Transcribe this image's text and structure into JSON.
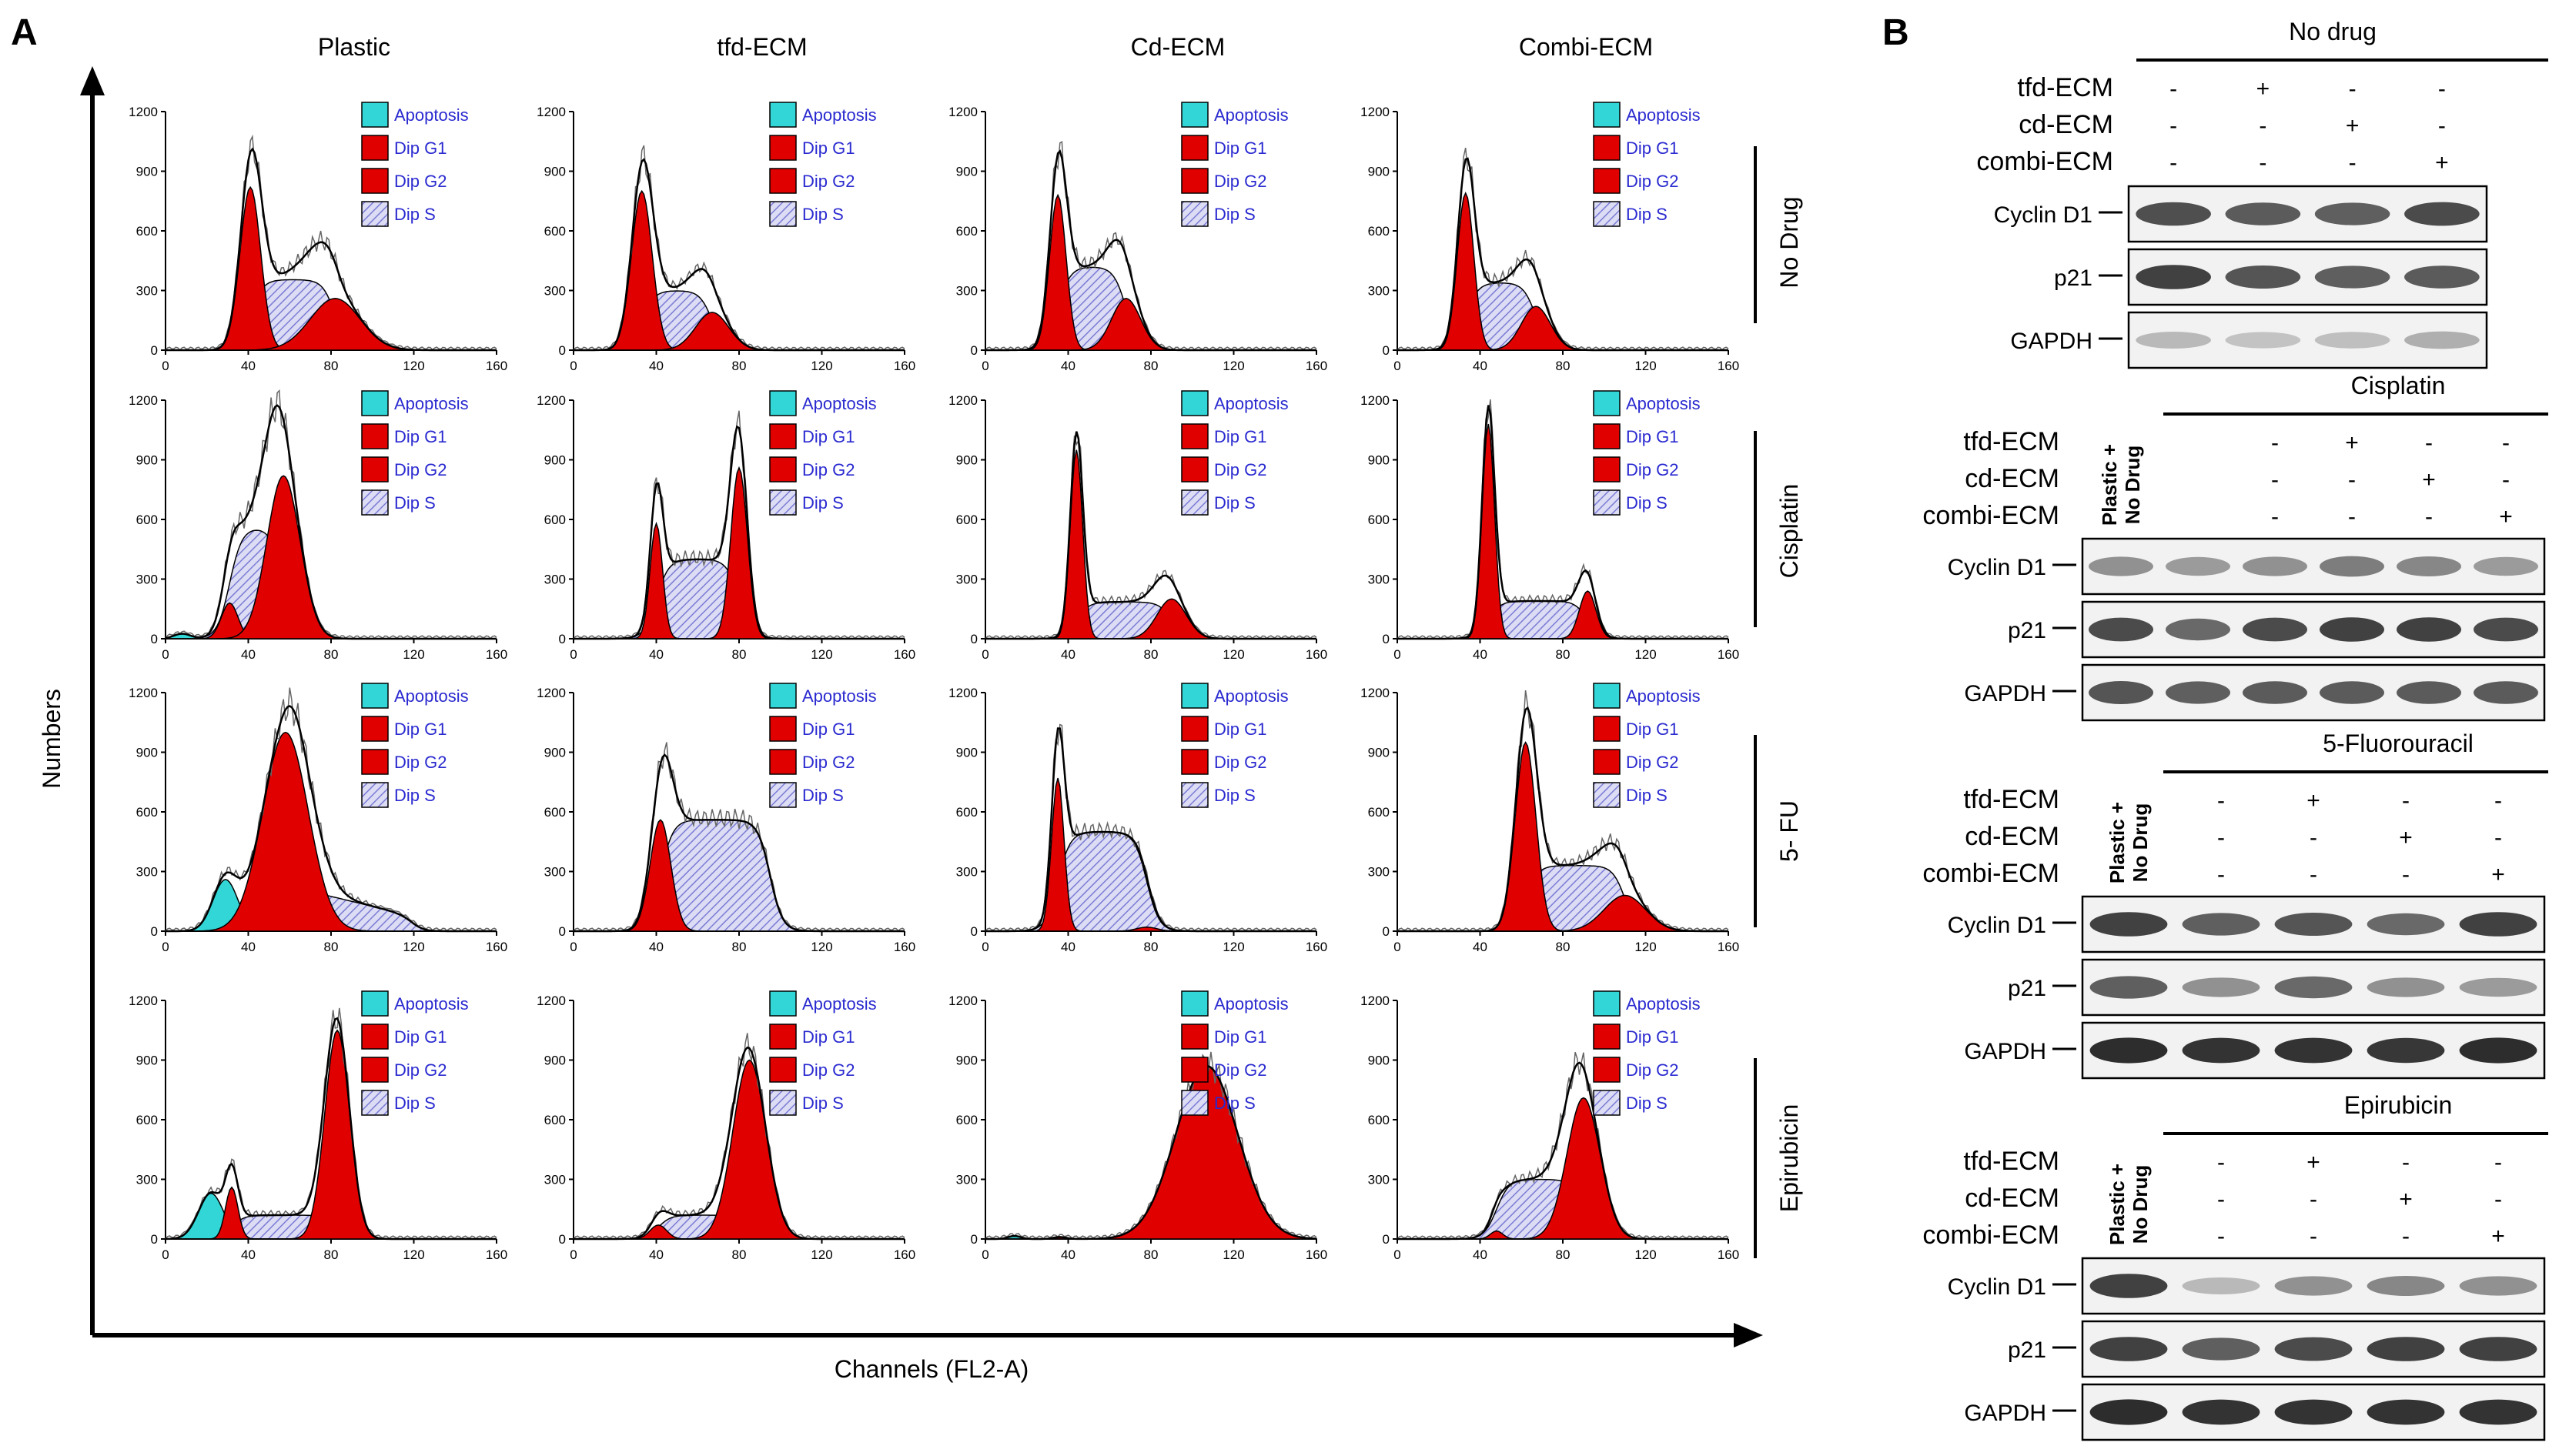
{
  "panel_a": {
    "letter": "A",
    "y_axis_label": "Numbers",
    "x_axis_label": "Channels (FL2-A)",
    "columns": [
      "Plastic",
      "tfd-ECM",
      "Cd-ECM",
      "Combi-ECM"
    ],
    "rows": [
      "No Drug",
      "Cisplatin",
      "5- FU",
      "Epirubicin"
    ],
    "legend": [
      "Apoptosis",
      "Dip G1",
      "Dip G2",
      "Dip S"
    ],
    "y_ticks": [
      "0",
      "300",
      "600",
      "900",
      "1200"
    ],
    "x_ticks": [
      "0",
      "40",
      "80",
      "120",
      "160"
    ],
    "colors": {
      "apoptosis": "#33d6d6",
      "g1": "#e00000",
      "g2": "#e00000",
      "s": "#c9c9ee"
    }
  },
  "panel_b": {
    "letter": "B",
    "conditions": [
      "tfd-ECM",
      "cd-ECM",
      "combi-ECM"
    ],
    "plastic_label_1": "Plastic +",
    "plastic_label_2": "No Drug",
    "proteins": [
      "Cyclin D1",
      "p21",
      "GAPDH"
    ],
    "sections": [
      {
        "title": "No drug",
        "signs": [
          [
            "-",
            "+",
            "-",
            "-"
          ],
          [
            "-",
            "-",
            "+",
            "-"
          ],
          [
            "-",
            "-",
            "-",
            "+"
          ]
        ],
        "intensity": [
          [
            0.78,
            0.72,
            0.7,
            0.8
          ],
          [
            0.85,
            0.75,
            0.7,
            0.72
          ],
          [
            0.25,
            0.2,
            0.22,
            0.3
          ]
        ]
      },
      {
        "title": "Cisplatin",
        "signs": [
          [
            "-",
            "+",
            "-",
            "-"
          ],
          [
            "-",
            "-",
            "+",
            "-"
          ],
          [
            "-",
            "-",
            "-",
            "+"
          ]
        ],
        "intensity": [
          [
            0.45,
            0.4,
            0.45,
            0.55,
            0.5,
            0.4
          ],
          [
            0.8,
            0.65,
            0.8,
            0.85,
            0.85,
            0.8
          ],
          [
            0.75,
            0.7,
            0.72,
            0.72,
            0.72,
            0.72
          ]
        ]
      },
      {
        "title": "5-Fluorouracil",
        "signs": [
          [
            "-",
            "+",
            "-",
            "-"
          ],
          [
            "-",
            "-",
            "+",
            "-"
          ],
          [
            "-",
            "-",
            "-",
            "+"
          ]
        ],
        "intensity": [
          [
            0.85,
            0.7,
            0.75,
            0.65,
            0.85
          ],
          [
            0.7,
            0.45,
            0.65,
            0.45,
            0.4
          ],
          [
            0.95,
            0.92,
            0.92,
            0.9,
            0.95
          ]
        ]
      },
      {
        "title": "Epirubicin",
        "signs": [
          [
            "-",
            "+",
            "-",
            "-"
          ],
          [
            "-",
            "-",
            "+",
            "-"
          ],
          [
            "-",
            "-",
            "-",
            "+"
          ]
        ],
        "intensity": [
          [
            0.85,
            0.25,
            0.45,
            0.5,
            0.45
          ],
          [
            0.85,
            0.7,
            0.8,
            0.85,
            0.85
          ],
          [
            0.95,
            0.92,
            0.92,
            0.92,
            0.92
          ]
        ]
      }
    ]
  },
  "histograms": [
    [
      {
        "pk": [
          [
            41,
            820,
            5
          ],
          [
            82,
            260,
            12
          ]
        ],
        "s": [
          [
            41,
            82,
            355,
            "even"
          ]
        ],
        "a": []
      },
      {
        "pk": [
          [
            33,
            800,
            5
          ],
          [
            67,
            190,
            8
          ]
        ],
        "s": [
          [
            33,
            67,
            300,
            "even"
          ]
        ],
        "a": []
      },
      {
        "pk": [
          [
            35,
            780,
            4
          ],
          [
            68,
            260,
            7
          ]
        ],
        "s": [
          [
            35,
            68,
            420,
            "even"
          ]
        ],
        "a": []
      },
      {
        "pk": [
          [
            33,
            790,
            4
          ],
          [
            67,
            220,
            7
          ]
        ],
        "s": [
          [
            33,
            67,
            340,
            "even"
          ]
        ],
        "a": []
      }
    ],
    [
      {
        "pk": [
          [
            31,
            180,
            4
          ],
          [
            57,
            820,
            8
          ]
        ],
        "s": [
          [
            31,
            57,
            560,
            "even"
          ]
        ],
        "a": [
          [
            8,
            25,
            4
          ]
        ]
      },
      {
        "pk": [
          [
            40,
            580,
            3
          ],
          [
            80,
            860,
            4
          ]
        ],
        "s": [
          [
            40,
            80,
            400,
            "even"
          ]
        ],
        "a": []
      },
      {
        "pk": [
          [
            44,
            950,
            3
          ],
          [
            90,
            200,
            7
          ]
        ],
        "s": [
          [
            44,
            90,
            185,
            "even"
          ]
        ],
        "a": []
      },
      {
        "pk": [
          [
            44,
            1080,
            3
          ],
          [
            92,
            240,
            4
          ]
        ],
        "s": [
          [
            44,
            92,
            190,
            "even"
          ]
        ],
        "a": []
      }
    ],
    [
      {
        "pk": [
          [
            58,
            1000,
            11
          ]
        ],
        "s": [
          [
            58,
            120,
            230,
            "decay"
          ]
        ],
        "a": [
          [
            29,
            260,
            6
          ]
        ]
      },
      {
        "pk": [
          [
            42,
            560,
            5
          ]
        ],
        "s": [
          [
            42,
            95,
            560,
            "even"
          ]
        ],
        "a": []
      },
      {
        "pk": [
          [
            35,
            770,
            3
          ],
          [
            78,
            20,
            5
          ]
        ],
        "s": [
          [
            35,
            78,
            500,
            "even"
          ]
        ],
        "a": []
      },
      {
        "pk": [
          [
            62,
            950,
            5
          ],
          [
            110,
            180,
            10
          ]
        ],
        "s": [
          [
            62,
            110,
            330,
            "even"
          ]
        ],
        "a": []
      }
    ],
    [
      {
        "pk": [
          [
            32,
            260,
            3
          ],
          [
            83,
            1050,
            6
          ]
        ],
        "s": [
          [
            32,
            83,
            120,
            "even"
          ]
        ],
        "a": [
          [
            22,
            230,
            6
          ]
        ]
      },
      {
        "pk": [
          [
            41,
            70,
            4
          ],
          [
            85,
            900,
            8
          ]
        ],
        "s": [
          [
            41,
            85,
            120,
            "even"
          ]
        ],
        "a": []
      },
      {
        "pk": [
          [
            36,
            10,
            3
          ],
          [
            107,
            870,
            15
          ]
        ],
        "s": [],
        "a": [
          [
            14,
            15,
            3
          ]
        ]
      },
      {
        "pk": [
          [
            48,
            40,
            3
          ],
          [
            90,
            710,
            8
          ]
        ],
        "s": [
          [
            48,
            90,
            300,
            "even"
          ]
        ],
        "a": []
      }
    ]
  ]
}
